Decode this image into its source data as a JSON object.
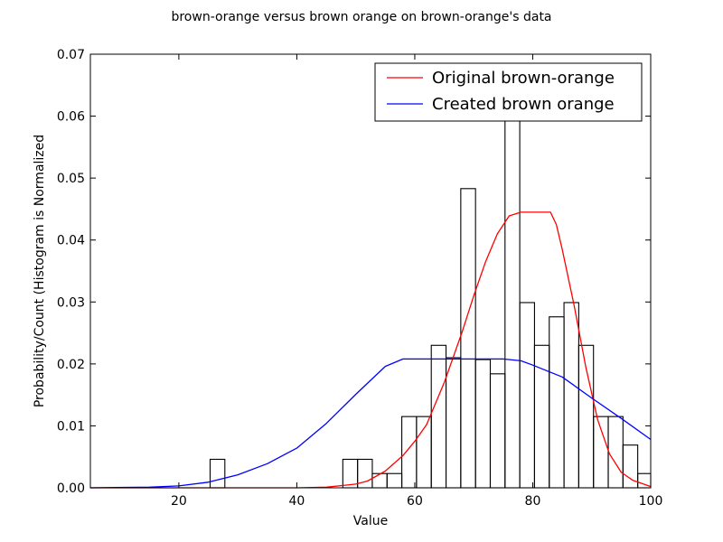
{
  "chart_data": {
    "type": "bar",
    "title": "brown-orange versus brown orange on brown-orange's data",
    "xlabel": "Value",
    "ylabel": "Probability/Count (Histogram is Normalized",
    "xlim": [
      5,
      100
    ],
    "ylim": [
      0,
      0.07
    ],
    "xticks": [
      "20",
      "40",
      "60",
      "80",
      "100"
    ],
    "yticks": [
      "0.00",
      "0.01",
      "0.02",
      "0.03",
      "0.04",
      "0.05",
      "0.06",
      "0.07"
    ],
    "histogram": {
      "bin_edges": [
        25.3,
        27.8,
        47.8,
        50.3,
        52.8,
        55.3,
        57.8,
        60.3,
        62.8,
        65.3,
        67.8,
        70.3,
        72.8,
        75.3,
        77.8,
        80.3,
        82.8,
        85.3,
        87.8,
        90.3,
        92.8,
        95.3,
        97.8,
        100.3
      ],
      "heights": [
        0.0046,
        0,
        0.0046,
        0.0046,
        0.0023,
        0.0023,
        0.0115,
        0.0115,
        0.023,
        0.021,
        0.0483,
        0.0207,
        0.0184,
        0.063,
        0.0299,
        0.023,
        0.0276,
        0.0299,
        0.023,
        0.0115,
        0.0115,
        0.0069,
        0.0023
      ]
    },
    "series": [
      {
        "name": "Original brown-orange",
        "color": "#ff0000",
        "x": [
          5,
          40,
          45,
          50,
          52,
          55,
          58,
          60,
          62,
          65,
          68,
          70,
          72,
          74,
          76,
          78,
          80,
          82,
          83,
          84,
          85,
          87,
          89,
          91,
          93,
          95,
          97,
          100
        ],
        "y": [
          0,
          0,
          0.0001,
          0.0006,
          0.0011,
          0.0027,
          0.0052,
          0.0075,
          0.0102,
          0.017,
          0.0251,
          0.031,
          0.0365,
          0.041,
          0.0439,
          0.0445,
          0.0445,
          0.0445,
          0.0445,
          0.0425,
          0.0385,
          0.0295,
          0.0195,
          0.011,
          0.0055,
          0.0025,
          0.0012,
          0.0002
        ]
      },
      {
        "name": "Created brown orange",
        "color": "#0000ff",
        "x": [
          5,
          15,
          20,
          25,
          30,
          35,
          40,
          45,
          50,
          55,
          58,
          60,
          65,
          70,
          75,
          78,
          80,
          85,
          90,
          95,
          100
        ],
        "y": [
          0,
          0.0001,
          0.0003,
          0.0009,
          0.0021,
          0.0039,
          0.0064,
          0.0104,
          0.0151,
          0.0196,
          0.0208,
          0.0208,
          0.0208,
          0.0208,
          0.0208,
          0.0205,
          0.0198,
          0.0179,
          0.0145,
          0.0112,
          0.0078
        ]
      }
    ],
    "legend": {
      "position": "top-right",
      "entries": [
        "Original brown-orange",
        "Created brown orange"
      ]
    }
  }
}
